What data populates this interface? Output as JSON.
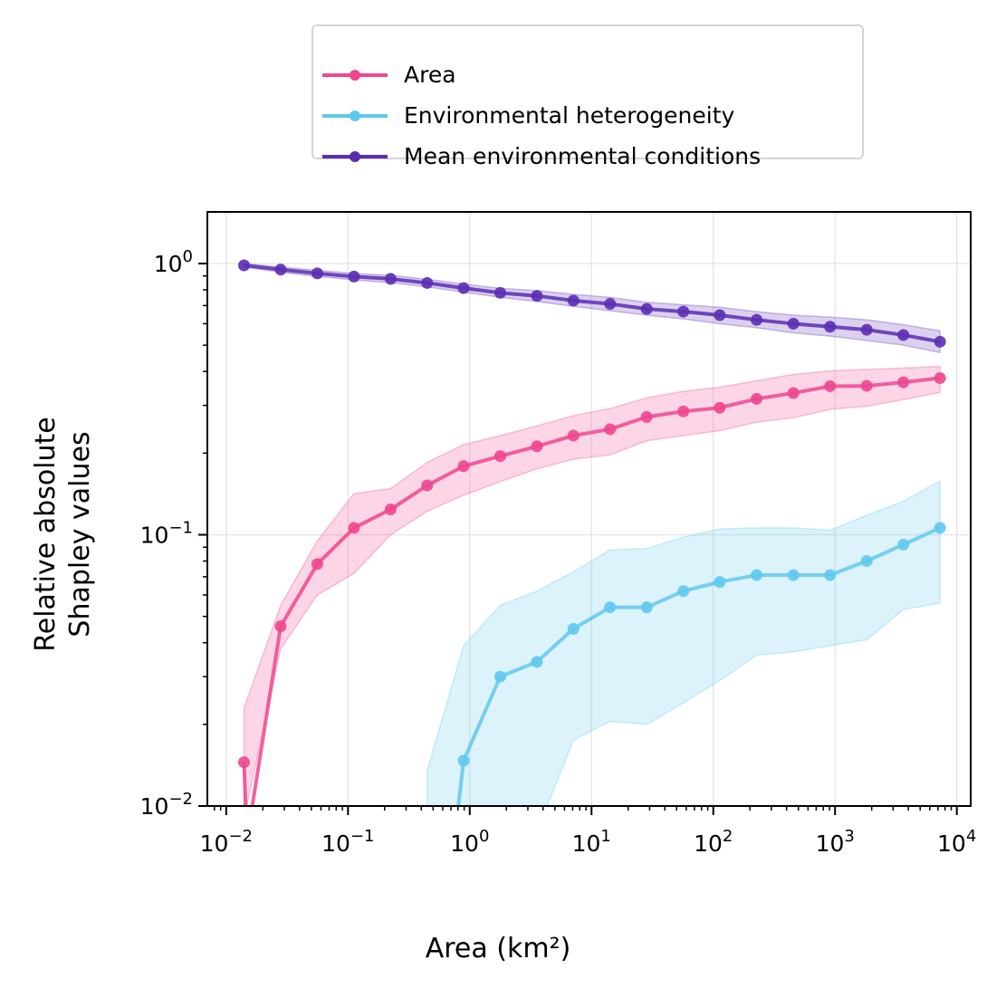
{
  "chart_data": {
    "type": "line",
    "xscale": "log",
    "yscale": "log",
    "xlabel": "Area (km²)",
    "ylabel": [
      "Relative absolute",
      "Shapley values"
    ],
    "xlim": [
      0.007,
      13000
    ],
    "ylim": [
      0.01,
      1.55
    ],
    "grid": true,
    "legend": "top-center-outside",
    "x_ticks": [
      {
        "value": 0.01,
        "base": "10",
        "exp": "−2"
      },
      {
        "value": 0.1,
        "base": "10",
        "exp": "−1"
      },
      {
        "value": 1,
        "base": "10",
        "exp": "0"
      },
      {
        "value": 10,
        "base": "10",
        "exp": "1"
      },
      {
        "value": 100,
        "base": "10",
        "exp": "2"
      },
      {
        "value": 1000,
        "base": "10",
        "exp": "3"
      },
      {
        "value": 10000,
        "base": "10",
        "exp": "4"
      }
    ],
    "y_ticks": [
      {
        "value": 0.01,
        "base": "10",
        "exp": "−2"
      },
      {
        "value": 0.1,
        "base": "10",
        "exp": "−1"
      },
      {
        "value": 1,
        "base": "10",
        "exp": "0"
      }
    ],
    "x": [
      0.014,
      0.028,
      0.056,
      0.112,
      0.224,
      0.447,
      0.89,
      1.78,
      3.56,
      7.1,
      14.2,
      28.4,
      56.8,
      113,
      227,
      455,
      910,
      1820,
      3640,
      7280
    ],
    "series": [
      {
        "name": "Area",
        "color": "#f0468f",
        "values": [
          0.0145,
          0.046,
          0.078,
          0.106,
          0.124,
          0.152,
          0.179,
          0.195,
          0.212,
          0.232,
          0.245,
          0.272,
          0.285,
          0.294,
          0.317,
          0.333,
          0.353,
          0.354,
          0.365,
          0.378
        ],
        "lower": [
          0.009,
          0.038,
          0.06,
          0.072,
          0.1,
          0.122,
          0.14,
          0.157,
          0.175,
          0.19,
          0.197,
          0.222,
          0.232,
          0.242,
          0.26,
          0.27,
          0.29,
          0.298,
          0.315,
          0.335
        ],
        "upper": [
          0.023,
          0.055,
          0.095,
          0.142,
          0.148,
          0.185,
          0.215,
          0.232,
          0.252,
          0.275,
          0.292,
          0.32,
          0.338,
          0.35,
          0.37,
          0.39,
          0.402,
          0.407,
          0.412,
          0.418
        ]
      },
      {
        "name": "Environmental heterogeneity",
        "color": "#60c8ee",
        "values": [
          null,
          null,
          null,
          null,
          null,
          null,
          0.0147,
          0.03,
          0.034,
          0.045,
          0.054,
          0.054,
          0.062,
          0.067,
          0.071,
          0.071,
          0.071,
          0.08,
          0.092,
          0.106
        ],
        "lower": [
          null,
          null,
          null,
          null,
          null,
          0.008,
          0.007,
          0.008,
          0.008,
          0.0175,
          0.0205,
          0.02,
          0.024,
          0.029,
          0.036,
          0.037,
          0.039,
          0.041,
          0.053,
          0.056
        ],
        "upper": [
          null,
          null,
          null,
          null,
          null,
          0.0135,
          0.039,
          0.055,
          0.062,
          0.073,
          0.088,
          0.089,
          0.098,
          0.105,
          0.106,
          0.106,
          0.104,
          0.118,
          0.133,
          0.158
        ]
      },
      {
        "name": "Mean environmental conditions",
        "color": "#5b2db4",
        "values": [
          0.985,
          0.95,
          0.92,
          0.895,
          0.878,
          0.848,
          0.812,
          0.78,
          0.76,
          0.73,
          0.71,
          0.68,
          0.665,
          0.645,
          0.62,
          0.6,
          0.585,
          0.57,
          0.545,
          0.515
        ],
        "lower": [
          0.97,
          0.93,
          0.895,
          0.87,
          0.85,
          0.82,
          0.785,
          0.75,
          0.725,
          0.695,
          0.67,
          0.645,
          0.625,
          0.6,
          0.58,
          0.555,
          0.54,
          0.52,
          0.5,
          0.47
        ],
        "upper": [
          1.0,
          0.97,
          0.945,
          0.92,
          0.905,
          0.875,
          0.84,
          0.81,
          0.795,
          0.77,
          0.75,
          0.72,
          0.705,
          0.69,
          0.665,
          0.645,
          0.635,
          0.62,
          0.595,
          0.565
        ]
      }
    ]
  }
}
